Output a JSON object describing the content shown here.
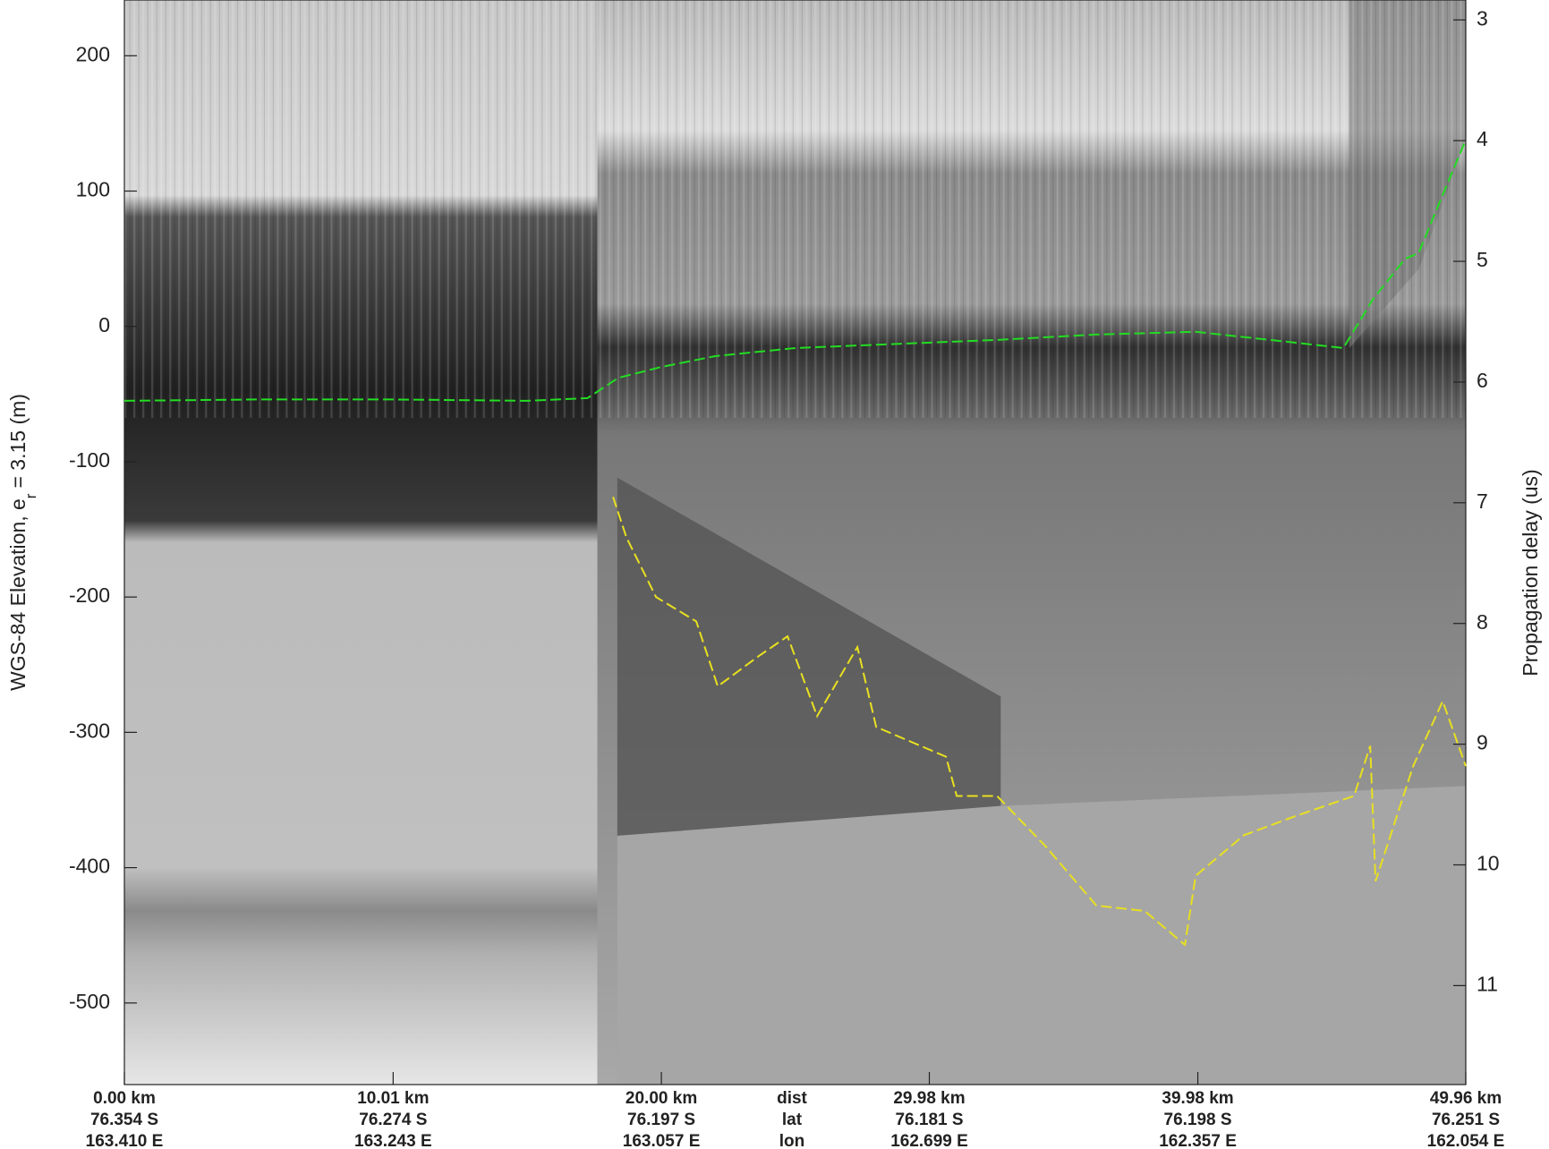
{
  "chart_data": {
    "type": "radargram",
    "ylabel": "WGS-84 Elevation, e",
    "ylabel_sub": "r",
    "ylabel_end": "= 3.15 (m)",
    "y2label": "Propagation delay (us)",
    "xlim": [
      0,
      49.96
    ],
    "ylim": [
      241.2,
      -560.3
    ],
    "y2lim": [
      2.835,
      11.82
    ],
    "yticks": [
      200,
      100,
      0,
      -100,
      -200,
      -300,
      -400,
      -500
    ],
    "y2ticks": [
      3,
      4,
      5,
      6,
      7,
      8,
      9,
      10,
      11
    ],
    "xticks": [
      {
        "value": 0,
        "label": "0.00 km"
      },
      {
        "value": 10.01,
        "label": "10.01 km"
      },
      {
        "value": 20.0,
        "label": "20.00 km"
      },
      {
        "value": 29.98,
        "label": "29.98 km"
      },
      {
        "value": 39.98,
        "label": "39.98 km"
      },
      {
        "value": 49.96,
        "label": "49.96 km"
      }
    ],
    "lat_labels": [
      "76.354 S",
      "76.274 S",
      "76.197 S",
      "76.181 S",
      "76.198 S",
      "76.251 S"
    ],
    "lon_labels": [
      "163.410 E",
      "163.243 E",
      "163.057 E",
      "162.699 E",
      "162.357 E",
      "162.054 E"
    ],
    "row_labels": [
      "dist",
      "lat",
      "lon"
    ],
    "series": [
      {
        "color": "#22dd22",
        "x": [
          0,
          5,
          10,
          15,
          17.25,
          18.4,
          20,
          22,
          25,
          28.7,
          32.5,
          36.2,
          39.9,
          43.6,
          45.4,
          46.5,
          47.7,
          48.2,
          48.8,
          49.9
        ],
        "values": [
          -55,
          -54,
          -54,
          -55,
          -53,
          -38,
          -30,
          -22,
          -16,
          -13,
          -10,
          -6,
          -4,
          -12,
          -16,
          20,
          50,
          54,
          83,
          135
        ]
      },
      {
        "color": "#e8e020",
        "x": [
          18.2,
          18.7,
          19.8,
          21.3,
          22.1,
          23.6,
          24.7,
          25.8,
          27.3,
          28.0,
          30.6,
          31.0,
          32.5,
          34.3,
          36.2,
          38.0,
          39.5,
          39.9,
          41.7,
          43.6,
          45.8,
          46.4,
          46.6,
          48.0,
          49.1,
          49.96
        ],
        "values": [
          -126,
          -156,
          -200,
          -218,
          -266,
          -244,
          -229,
          -288,
          -237,
          -296,
          -318,
          -347,
          -347,
          -384,
          -428,
          -432,
          -457,
          -406,
          -376,
          -362,
          -347,
          -310,
          -410,
          -325,
          -277,
          -325
        ]
      }
    ]
  }
}
